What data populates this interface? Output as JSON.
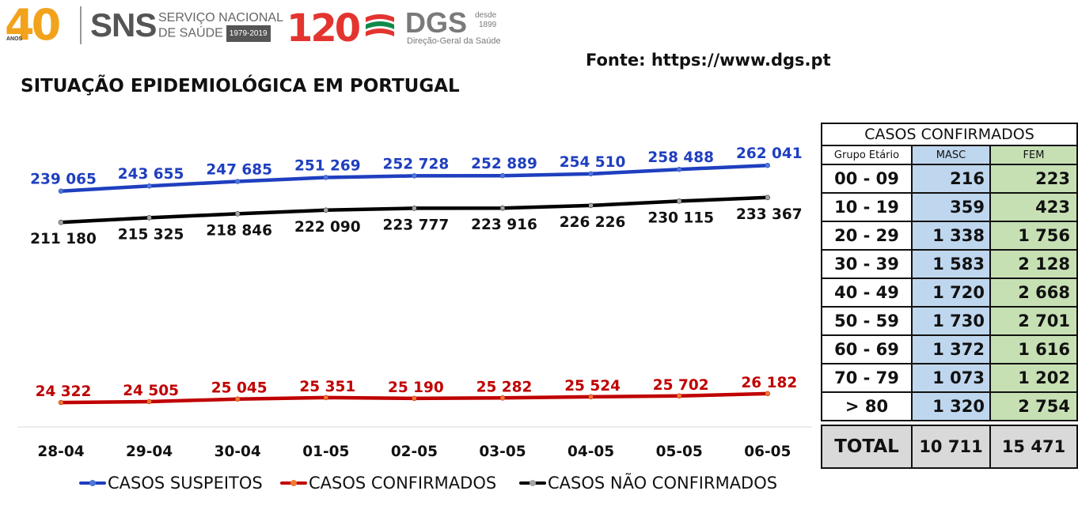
{
  "header": {
    "logo40_digits": "40",
    "logo40_sub": "ANOS",
    "sns_brand": "SNS",
    "sns_line1": "SERVIÇO NACIONAL",
    "sns_line2": "DE SAÚDE",
    "sns_years": "1979-2019",
    "logo120": "120",
    "logo120_sub": "anos",
    "dgs_brand": "DGS",
    "dgs_desde": "desde",
    "dgs_year": "1899",
    "dgs_name": "Direção-Geral da Saúde",
    "source": "Fonte: https://www.dgs.pt",
    "title": "SITUAÇÃO EPIDEMIOLÓGICA EM PORTUGAL"
  },
  "chart_data": {
    "type": "line",
    "categories": [
      "28-04",
      "29-04",
      "30-04",
      "01-05",
      "02-05",
      "03-05",
      "04-05",
      "05-05",
      "06-05"
    ],
    "series": [
      {
        "name": "CASOS SUSPEITOS",
        "color": "#1f3fbf",
        "label_color": "#1f3fbf",
        "values": [
          239065,
          243655,
          247685,
          251269,
          252728,
          252889,
          254510,
          258488,
          262041
        ],
        "labels": [
          "239 065",
          "243 655",
          "247 685",
          "251 269",
          "252 728",
          "252 889",
          "254 510",
          "258 488",
          "262 041"
        ]
      },
      {
        "name": "CASOS CONFIRMADOS",
        "color": "#c00000",
        "label_color": "#c00000",
        "values": [
          24322,
          24505,
          25045,
          25351,
          25190,
          25282,
          25524,
          25702,
          26182
        ],
        "labels": [
          "24 322",
          "24 505",
          "25 045",
          "25 351",
          "25 190",
          "25 282",
          "25 524",
          "25 702",
          "26 182"
        ]
      },
      {
        "name": "CASOS NÃO CONFIRMADOS",
        "color": "#000000",
        "label_color": "#111111",
        "values": [
          211180,
          215325,
          218846,
          222090,
          223777,
          223916,
          226226,
          230115,
          233367
        ],
        "labels": [
          "211 180",
          "215 325",
          "218 846",
          "222 090",
          "223 777",
          "223 916",
          "226 226",
          "230 115",
          "233 367"
        ]
      }
    ],
    "legend_position": "bottom",
    "grid": false
  },
  "table": {
    "caption": "CASOS CONFIRMADOS",
    "headers": [
      "Grupo Etário",
      "MASC",
      "FEM"
    ],
    "rows": [
      {
        "group": "00 - 09",
        "masc": "216",
        "fem": "223"
      },
      {
        "group": "10 - 19",
        "masc": "359",
        "fem": "423"
      },
      {
        "group": "20 - 29",
        "masc": "1 338",
        "fem": "1 756"
      },
      {
        "group": "30 - 39",
        "masc": "1 583",
        "fem": "2 128"
      },
      {
        "group": "40 - 49",
        "masc": "1 720",
        "fem": "2 668"
      },
      {
        "group": "50 - 59",
        "masc": "1 730",
        "fem": "2 701"
      },
      {
        "group": "60 - 69",
        "masc": "1 372",
        "fem": "1 616"
      },
      {
        "group": "70 - 79",
        "masc": "1 073",
        "fem": "1 202"
      },
      {
        "group": "> 80",
        "masc": "1 320",
        "fem": "2 754"
      }
    ],
    "total": {
      "label": "TOTAL",
      "masc": "10 711",
      "fem": "15 471"
    }
  }
}
